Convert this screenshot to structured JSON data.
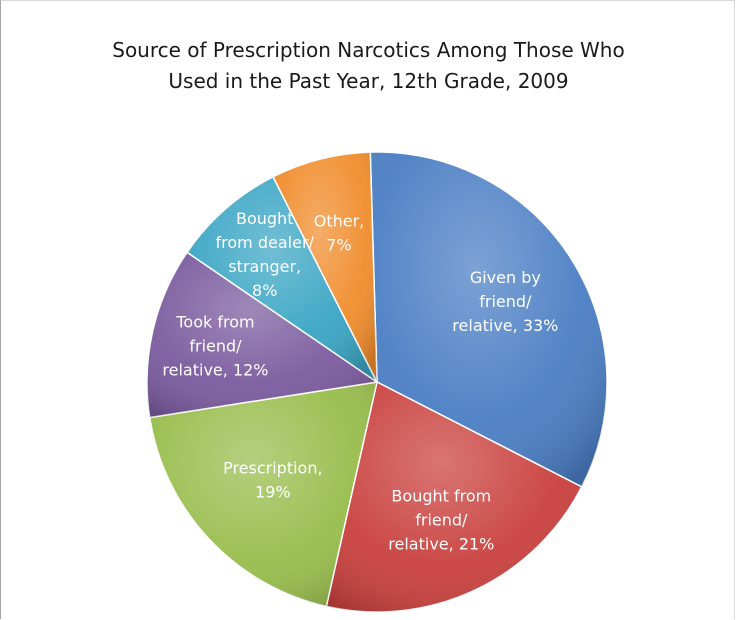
{
  "chart_data": {
    "type": "pie",
    "title_lines": [
      "Source of Prescription Narcotics Among Those Who",
      "Used in the Past Year, 12th Grade, 2009"
    ],
    "slices": [
      {
        "label_lines": [
          "Given by",
          "friend/",
          "relative, 33%"
        ],
        "value": 33,
        "color": "#4a7ec4"
      },
      {
        "label_lines": [
          "Bought from",
          "friend/",
          "relative, 21%"
        ],
        "value": 21,
        "color": "#c9403d"
      },
      {
        "label_lines": [
          "Prescription,",
          "19%"
        ],
        "value": 19,
        "color": "#98bd4c"
      },
      {
        "label_lines": [
          "Took from",
          "friend/",
          "relative, 12%"
        ],
        "value": 12,
        "color": "#7a5a9e"
      },
      {
        "label_lines": [
          "Bought",
          "from dealer/",
          "stranger,",
          "8%"
        ],
        "value": 8,
        "color": "#3aa5c4"
      },
      {
        "label_lines": [
          "Other,",
          "7%"
        ],
        "value": 7,
        "color": "#f08c2c"
      }
    ],
    "legend": "none"
  }
}
